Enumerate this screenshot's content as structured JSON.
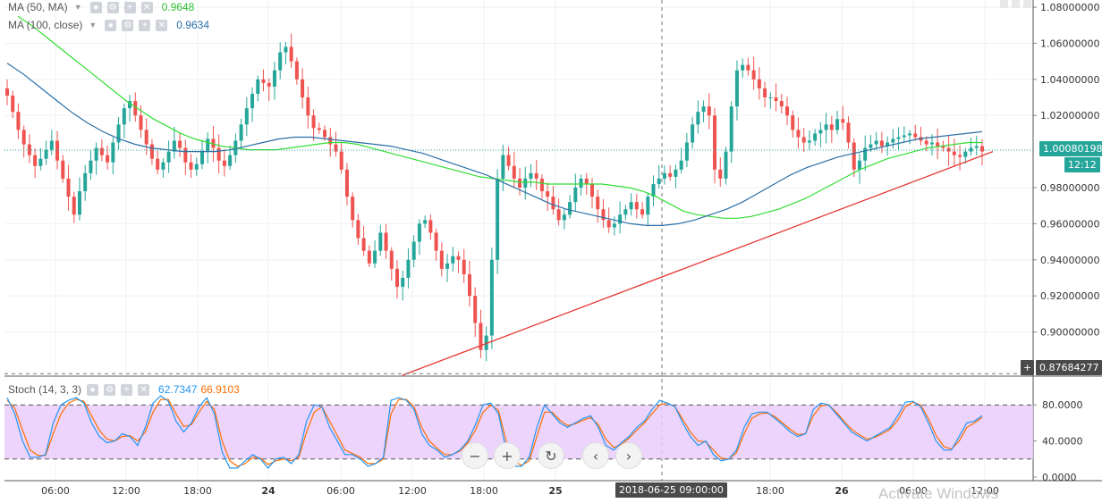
{
  "legend_ma50": {
    "label": "MA (50, MA)",
    "value": "0.9648",
    "color": "#33dd33"
  },
  "legend_ma100": {
    "label": "MA (100, close)",
    "value": "0.9634",
    "color": "#2a6fa8"
  },
  "legend_stoch": {
    "label": "Stoch (14, 3, 3)",
    "k_value": "62.7347",
    "d_value": "66.9103",
    "k_color": "#2196f3",
    "d_color": "#ff6d00"
  },
  "current_price": {
    "value": "1.00080198",
    "time": "12:12",
    "color": "#26a69a"
  },
  "crosshair_price": "0.87684277",
  "crosshair_time": "2018-06-25 09:00:00",
  "price_axis_labels": [
    "1.08000000",
    "1.06000000",
    "1.04000000",
    "1.02000000",
    "0.98000000",
    "0.96000000",
    "0.94000000",
    "0.92000000",
    "0.90000000"
  ],
  "stoch_axis_labels": [
    "80.0000",
    "40.0000",
    "0.0000"
  ],
  "time_axis_labels": [
    "06:00",
    "12:00",
    "18:00",
    "24",
    "06:00",
    "12:00",
    "18:00",
    "25",
    "18:00",
    "26",
    "06:00",
    "12:00"
  ],
  "watermark": "Activate Windows",
  "nav_icons": [
    "zoom-out-icon",
    "zoom-in-icon",
    "reset-icon",
    "scroll-left-icon",
    "scroll-right-icon"
  ],
  "chart_data": {
    "type": "candlestick",
    "price_range": [
      0.876,
      1.084
    ],
    "stoch_range": [
      0,
      100
    ],
    "candles_close": [
      1.031,
      1.022,
      1.012,
      1.004,
      0.998,
      0.992,
      0.996,
      1.001,
      1.006,
      0.995,
      0.985,
      0.975,
      0.965,
      0.978,
      0.988,
      0.995,
      1.002,
      0.998,
      0.994,
      1.005,
      1.015,
      1.024,
      1.028,
      1.02,
      1.012,
      1.004,
      0.996,
      0.99,
      0.994,
      1.0,
      1.006,
      1.002,
      0.994,
      0.99,
      0.993,
      1.0,
      1.007,
      1.002,
      0.995,
      0.992,
      0.998,
      1.006,
      1.015,
      1.024,
      1.032,
      1.04,
      1.038,
      1.036,
      1.045,
      1.055,
      1.058,
      1.05,
      1.04,
      1.03,
      1.02,
      1.013,
      1.012,
      1.008,
      1.004,
      1.0,
      0.99,
      0.975,
      0.962,
      0.952,
      0.945,
      0.938,
      0.945,
      0.955,
      0.945,
      0.935,
      0.925,
      0.93,
      0.94,
      0.95,
      0.96,
      0.962,
      0.955,
      0.945,
      0.935,
      0.938,
      0.942,
      0.94,
      0.932,
      0.92,
      0.905,
      0.89,
      0.898,
      0.94,
      0.985,
      0.998,
      0.992,
      0.985,
      0.98,
      0.985,
      0.988,
      0.985,
      0.978,
      0.975,
      0.968,
      0.962,
      0.965,
      0.972,
      0.98,
      0.985,
      0.982,
      0.975,
      0.968,
      0.962,
      0.958,
      0.96,
      0.965,
      0.968,
      0.972,
      0.968,
      0.965,
      0.975,
      0.982,
      0.985,
      0.988,
      0.986,
      0.99,
      0.995,
      1.005,
      1.015,
      1.022,
      1.025,
      1.02,
      0.99,
      0.985,
      1.0,
      1.025,
      1.045,
      1.048,
      1.045,
      1.04,
      1.035,
      1.03,
      1.03,
      1.028,
      1.025,
      1.02,
      1.012,
      1.008,
      1.005,
      1.006,
      1.01,
      1.012,
      1.015,
      1.012,
      1.018,
      1.016,
      1.005,
      0.99,
      0.995,
      1.002,
      1.004,
      1.006,
      1.003,
      1.005,
      1.007,
      1.008,
      1.009,
      1.01,
      1.008,
      1.006,
      1.004,
      1.005,
      1.003,
      1.002,
      1.0,
      0.998,
      0.997,
      1.0,
      1.002,
      1.003,
      1.0
    ],
    "ma50": [
      1.075,
      1.07,
      1.064,
      1.058,
      1.052,
      1.046,
      1.04,
      1.034,
      1.028,
      1.023,
      1.018,
      1.014,
      1.01,
      1.007,
      1.005,
      1.003,
      1.002,
      1.001,
      1.001,
      1.001,
      1.002,
      1.003,
      1.004,
      1.005,
      1.005,
      1.004,
      1.002,
      1.0,
      0.998,
      0.996,
      0.994,
      0.992,
      0.99,
      0.988,
      0.986,
      0.985,
      0.984,
      0.983,
      0.983,
      0.982,
      0.982,
      0.982,
      0.982,
      0.982,
      0.981,
      0.98,
      0.978,
      0.975,
      0.971,
      0.967,
      0.965,
      0.964,
      0.963,
      0.963,
      0.964,
      0.966,
      0.968,
      0.971,
      0.974,
      0.978,
      0.982,
      0.986,
      0.99,
      0.993,
      0.996,
      0.998,
      1.0,
      1.002,
      1.003,
      1.004,
      1.005,
      1.005
    ],
    "ma100": [
      1.049,
      1.043,
      1.036,
      1.029,
      1.022,
      1.016,
      1.011,
      1.007,
      1.004,
      1.002,
      1.001,
      1.0,
      1.0,
      1.0,
      1.001,
      1.003,
      1.005,
      1.007,
      1.008,
      1.008,
      1.007,
      1.006,
      1.005,
      1.004,
      1.003,
      1.001,
      0.999,
      0.996,
      0.993,
      0.99,
      0.987,
      0.983,
      0.979,
      0.975,
      0.971,
      0.968,
      0.966,
      0.964,
      0.962,
      0.96,
      0.959,
      0.959,
      0.96,
      0.962,
      0.965,
      0.968,
      0.972,
      0.977,
      0.982,
      0.987,
      0.991,
      0.994,
      0.997,
      0.999,
      1.001,
      1.003,
      1.005,
      1.007,
      1.008,
      1.009,
      1.01,
      1.011
    ],
    "trendline": {
      "from": {
        "time": "early 24",
        "price": 0.876
      },
      "to": {
        "time": "26 12:00",
        "price": 1.0
      },
      "color": "#e53935"
    },
    "stoch_k": [
      88,
      70,
      40,
      22,
      22,
      25,
      60,
      80,
      85,
      88,
      82,
      60,
      45,
      38,
      40,
      48,
      45,
      35,
      55,
      82,
      90,
      84,
      62,
      50,
      60,
      78,
      88,
      70,
      28,
      10,
      10,
      18,
      25,
      20,
      10,
      20,
      22,
      15,
      25,
      62,
      80,
      78,
      55,
      40,
      25,
      25,
      20,
      12,
      15,
      22,
      85,
      88,
      85,
      75,
      48,
      35,
      30,
      22,
      25,
      30,
      40,
      58,
      80,
      82,
      70,
      30,
      12,
      12,
      22,
      55,
      80,
      70,
      60,
      55,
      60,
      65,
      68,
      55,
      35,
      30,
      38,
      45,
      55,
      62,
      75,
      85,
      82,
      78,
      60,
      45,
      35,
      40,
      25,
      18,
      20,
      30,
      55,
      70,
      72,
      72,
      65,
      58,
      50,
      45,
      48,
      75,
      82,
      80,
      70,
      60,
      50,
      45,
      40,
      45,
      50,
      55,
      68,
      83,
      84,
      78,
      60,
      40,
      30,
      30,
      45,
      60,
      62,
      68
    ],
    "stoch_d": [
      85,
      76,
      52,
      30,
      24,
      24,
      48,
      70,
      82,
      86,
      84,
      68,
      52,
      42,
      40,
      45,
      46,
      40,
      50,
      72,
      86,
      86,
      70,
      56,
      58,
      72,
      84,
      75,
      40,
      18,
      12,
      15,
      22,
      21,
      14,
      18,
      20,
      18,
      22,
      50,
      72,
      78,
      62,
      46,
      30,
      26,
      22,
      15,
      15,
      20,
      70,
      86,
      86,
      78,
      55,
      40,
      32,
      25,
      25,
      29,
      38,
      52,
      72,
      80,
      74,
      40,
      18,
      13,
      18,
      45,
      72,
      72,
      63,
      57,
      59,
      63,
      66,
      58,
      42,
      33,
      36,
      43,
      52,
      60,
      70,
      80,
      82,
      78,
      64,
      50,
      40,
      39,
      30,
      21,
      20,
      27,
      48,
      65,
      70,
      71,
      67,
      60,
      53,
      47,
      48,
      68,
      79,
      80,
      72,
      62,
      53,
      47,
      42,
      44,
      48,
      53,
      63,
      78,
      83,
      80,
      65,
      46,
      34,
      31,
      40,
      55,
      60,
      66
    ]
  }
}
